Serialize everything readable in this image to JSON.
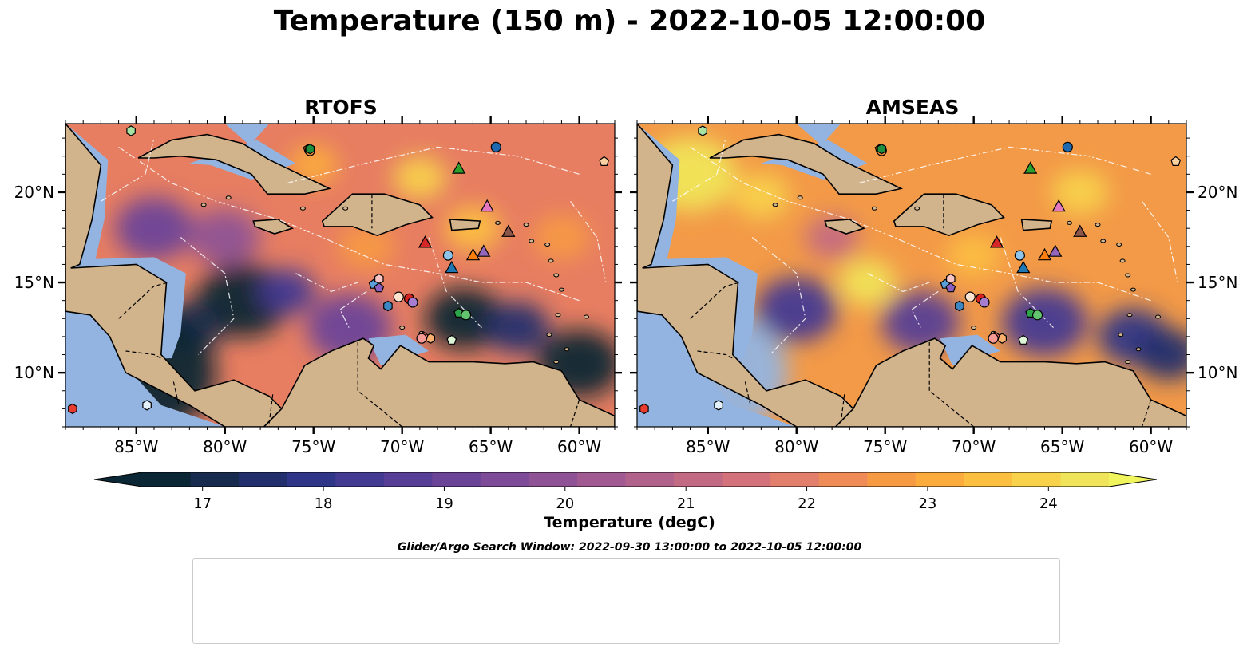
{
  "title": "Temperature (150 m) - 2022-10-05 12:00:00",
  "panels": [
    {
      "title": "RTOFS"
    },
    {
      "title": "AMSEAS"
    }
  ],
  "map_extent": {
    "lon": [
      -89,
      -58
    ],
    "lat": [
      7.0,
      23.8
    ]
  },
  "axes": {
    "lon_ticks": [
      {
        "value": -85,
        "label": "85°W"
      },
      {
        "value": -80,
        "label": "80°W"
      },
      {
        "value": -75,
        "label": "75°W"
      },
      {
        "value": -70,
        "label": "70°W"
      },
      {
        "value": -65,
        "label": "65°W"
      },
      {
        "value": -60,
        "label": "60°W"
      }
    ],
    "lat_ticks": [
      {
        "value": 20,
        "label": "20°N"
      },
      {
        "value": 15,
        "label": "15°N"
      },
      {
        "value": 10,
        "label": "10°N"
      }
    ]
  },
  "colorbar": {
    "label": "Temperature (degC)",
    "min": 16.5,
    "max": 24.5,
    "step": 0.5,
    "ticks": [
      {
        "value": 17,
        "label": "17"
      },
      {
        "value": 18,
        "label": "18"
      },
      {
        "value": 19,
        "label": "19"
      },
      {
        "value": 20,
        "label": "20"
      },
      {
        "value": 21,
        "label": "21"
      },
      {
        "value": 22,
        "label": "22"
      },
      {
        "value": 23,
        "label": "23"
      },
      {
        "value": 24,
        "label": "24"
      }
    ],
    "colors": [
      "#0b2634",
      "#172b4e",
      "#232f6d",
      "#2f3587",
      "#433a92",
      "#573e96",
      "#6b4498",
      "#7d4b97",
      "#8e5295",
      "#a05a91",
      "#b1628b",
      "#c26a83",
      "#d3727a",
      "#e27e6c",
      "#ef8b57",
      "#f79a44",
      "#fbac3d",
      "#fcbf40",
      "#f8d24b",
      "#f0e55a"
    ],
    "under_color": "#0b2634",
    "over_color": "#f0f55e"
  },
  "map_colors": {
    "land": "#d2b48c",
    "shelf": "#93b4e0",
    "rtofs_background": "#e77e62",
    "amseas_background": "#f39a48"
  },
  "search_window": "Glider/Argo Search Window: 2022-09-30 13:00:00 to 2022-10-05 12:00:00",
  "platforms": [
    {
      "id": "1902314",
      "marker": "circle",
      "color": "#1f69b0",
      "locations": [
        [
          -64.7,
          22.5
        ]
      ]
    },
    {
      "id": "2903766",
      "marker": "hexagon",
      "color": "#3d87c4",
      "locations": [
        [
          -70.8,
          13.7
        ]
      ]
    },
    {
      "id": "3902456",
      "marker": "pentagon",
      "color": "#5aa0d6",
      "locations": [
        [
          -71.6,
          14.9
        ]
      ]
    },
    {
      "id": "3902457",
      "marker": "circle",
      "color": "#8ec3ea",
      "locations": [
        [
          -67.4,
          16.5
        ]
      ]
    },
    {
      "id": "4902476",
      "marker": "hexagon",
      "color": "#e3f1fb",
      "locations": [
        [
          -84.4,
          8.2
        ]
      ]
    },
    {
      "id": "4903227",
      "marker": "pentagon",
      "color": "#e26f13",
      "locations": [
        [
          -75.3,
          22.4
        ]
      ]
    },
    {
      "id": "4903237",
      "marker": "circle",
      "color": "#f88e3c",
      "locations": [
        [
          -75.2,
          22.3
        ]
      ]
    },
    {
      "id": "4903238",
      "marker": "hexagon",
      "color": "#fbb06e",
      "locations": [
        [
          -68.4,
          11.9
        ]
      ]
    },
    {
      "id": "4903244",
      "marker": "pentagon",
      "color": "#fdd0a2",
      "locations": [
        [
          -58.6,
          21.7
        ]
      ]
    },
    {
      "id": "4903277",
      "marker": "circle",
      "color": "#ffe5cf",
      "locations": [
        [
          -70.2,
          14.2
        ]
      ]
    },
    {
      "id": "4903333",
      "marker": "hexagon",
      "color": "#1e8f3f",
      "locations": [
        [
          -75.2,
          22.4
        ]
      ]
    },
    {
      "id": "4903344",
      "marker": "pentagon",
      "color": "#2ea54b",
      "locations": [
        [
          -66.8,
          13.3
        ]
      ]
    },
    {
      "id": "4903349",
      "marker": "circle",
      "color": "#62c46f",
      "locations": [
        [
          -66.4,
          13.2
        ]
      ]
    },
    {
      "id": "4903354",
      "marker": "hexagon",
      "color": "#a8e3a3",
      "locations": [
        [
          -85.3,
          23.4
        ]
      ]
    },
    {
      "id": "4903629",
      "marker": "pentagon",
      "color": "#dff5d8",
      "locations": [
        [
          -67.2,
          11.8
        ]
      ]
    },
    {
      "id": "5906437",
      "marker": "circle",
      "color": "#d52422",
      "locations": [
        [
          -69.6,
          14.1
        ]
      ]
    },
    {
      "id": "5906478",
      "marker": "hexagon",
      "color": "#ea3b31",
      "locations": [
        [
          -88.6,
          8.0
        ]
      ]
    },
    {
      "id": "6901182",
      "marker": "pentagon",
      "color": "#f26a64",
      "locations": [
        [
          -68.8,
          12.0
        ]
      ]
    },
    {
      "id": "6903134",
      "marker": "circle",
      "color": "#f79a95",
      "locations": [
        [
          -68.9,
          11.9
        ]
      ]
    },
    {
      "id": "6903135",
      "marker": "hexagon",
      "color": "#fcc5c3",
      "locations": [
        [
          -71.3,
          15.2
        ]
      ]
    },
    {
      "id": "6903136",
      "marker": "pentagon",
      "color": "#8a5fbf",
      "locations": [
        [
          -71.3,
          14.7
        ]
      ]
    },
    {
      "id": "6903137",
      "marker": "circle",
      "color": "#a77dd0",
      "locations": [
        [
          -69.4,
          13.9
        ]
      ]
    }
  ],
  "gliders": [
    {
      "id": "SG610-20220621T1130",
      "color": "#1f77b4",
      "location": [
        -67.2,
        15.8
      ]
    },
    {
      "id": "SG649-20220814T0958",
      "color": "#ff7f0e",
      "location": [
        -66.0,
        16.5
      ]
    },
    {
      "id": "SG665-20220623T1144",
      "color": "#2ca02c",
      "location": [
        -66.8,
        21.3
      ]
    },
    {
      "id": "SG667-20220629T1254",
      "color": "#d62728",
      "location": [
        -68.7,
        17.2
      ]
    },
    {
      "id": "SG678-20220622T1240",
      "color": "#9467bd",
      "location": [
        -65.4,
        16.7
      ]
    },
    {
      "id": "ng347-20220727T0000",
      "color": "#8c564b",
      "location": [
        -64.0,
        17.8
      ]
    },
    {
      "id": "ng357-20220803T0000",
      "color": "#e377c2",
      "location": [
        -65.2,
        19.2
      ]
    }
  ]
}
